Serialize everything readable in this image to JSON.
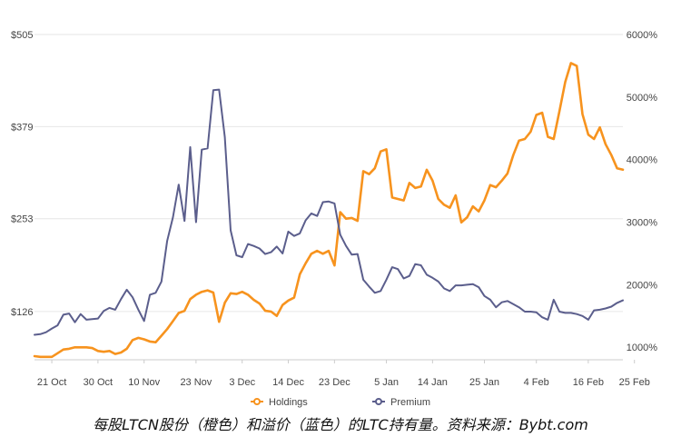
{
  "caption": "每股LTCN股份（橙色）和溢价（蓝色）的LTC持有量。资料来源：Bybt.com",
  "colors": {
    "holdings": "#f7931e",
    "premium": "#5b5e8c",
    "grid": "#e6e6e6",
    "text": "#444444"
  },
  "chart_data": {
    "type": "line",
    "x_ticks": [
      "21 Oct",
      "30 Oct",
      "10 Nov",
      "23 Nov",
      "3 Dec",
      "14 Dec",
      "23 Dec",
      "5 Jan",
      "14 Jan",
      "25 Jan",
      "4 Feb",
      "16 Feb",
      "25 Feb"
    ],
    "x_tick_index": [
      3,
      11,
      19,
      28,
      36,
      44,
      52,
      61,
      69,
      78,
      87,
      96,
      104
    ],
    "y_left": {
      "ticks": [
        "$126",
        "$253",
        "$379",
        "$505"
      ],
      "values": [
        126,
        253,
        379,
        505
      ],
      "range": [
        60,
        505
      ]
    },
    "y_right": {
      "ticks": [
        "1000%",
        "2000%",
        "3000%",
        "4000%",
        "5000%",
        "6000%"
      ],
      "values": [
        1000,
        2000,
        3000,
        4000,
        5000,
        6000
      ],
      "range": [
        800,
        6000
      ]
    },
    "grid": true,
    "legend_position": "bottom",
    "series": [
      {
        "name": "Holdings",
        "axis": "left",
        "values": [
          65,
          64,
          64,
          64,
          69,
          74,
          75,
          77,
          77,
          77,
          76,
          72,
          71,
          72,
          68,
          70,
          75,
          87,
          90,
          88,
          85,
          84,
          93,
          102,
          113,
          124,
          127,
          143,
          149,
          153,
          155,
          152,
          112,
          138,
          151,
          150,
          153,
          149,
          142,
          137,
          127,
          126,
          120,
          135,
          141,
          145,
          177,
          192,
          205,
          209,
          205,
          209,
          189,
          262,
          253,
          254,
          250,
          318,
          314,
          322,
          345,
          348,
          282,
          280,
          278,
          302,
          295,
          297,
          320,
          305,
          280,
          272,
          268,
          285,
          248,
          255,
          270,
          263,
          278,
          299,
          296,
          305,
          315,
          340,
          360,
          362,
          372,
          395,
          398,
          365,
          362,
          400,
          440,
          466,
          462,
          396,
          368,
          362,
          378,
          355,
          340,
          322,
          320
        ]
      },
      {
        "name": "Premium",
        "axis": "right",
        "values": [
          1200,
          1210,
          1240,
          1300,
          1350,
          1520,
          1540,
          1400,
          1530,
          1440,
          1450,
          1460,
          1580,
          1630,
          1600,
          1770,
          1920,
          1800,
          1600,
          1420,
          1840,
          1870,
          2050,
          2700,
          3080,
          3600,
          3020,
          4200,
          3000,
          4160,
          4180,
          5110,
          5120,
          4360,
          2870,
          2470,
          2440,
          2650,
          2620,
          2580,
          2490,
          2520,
          2610,
          2500,
          2850,
          2780,
          2820,
          3030,
          3140,
          3100,
          3320,
          3330,
          3300,
          2800,
          2620,
          2480,
          2490,
          2080,
          1970,
          1870,
          1900,
          2080,
          2280,
          2250,
          2100,
          2140,
          2330,
          2310,
          2160,
          2110,
          2050,
          1940,
          1900,
          1990,
          1990,
          2000,
          2010,
          1960,
          1820,
          1760,
          1640,
          1720,
          1740,
          1690,
          1640,
          1570,
          1570,
          1560,
          1480,
          1440,
          1760,
          1570,
          1550,
          1550,
          1530,
          1500,
          1440,
          1590,
          1600,
          1620,
          1650,
          1710,
          1750
        ]
      }
    ]
  }
}
